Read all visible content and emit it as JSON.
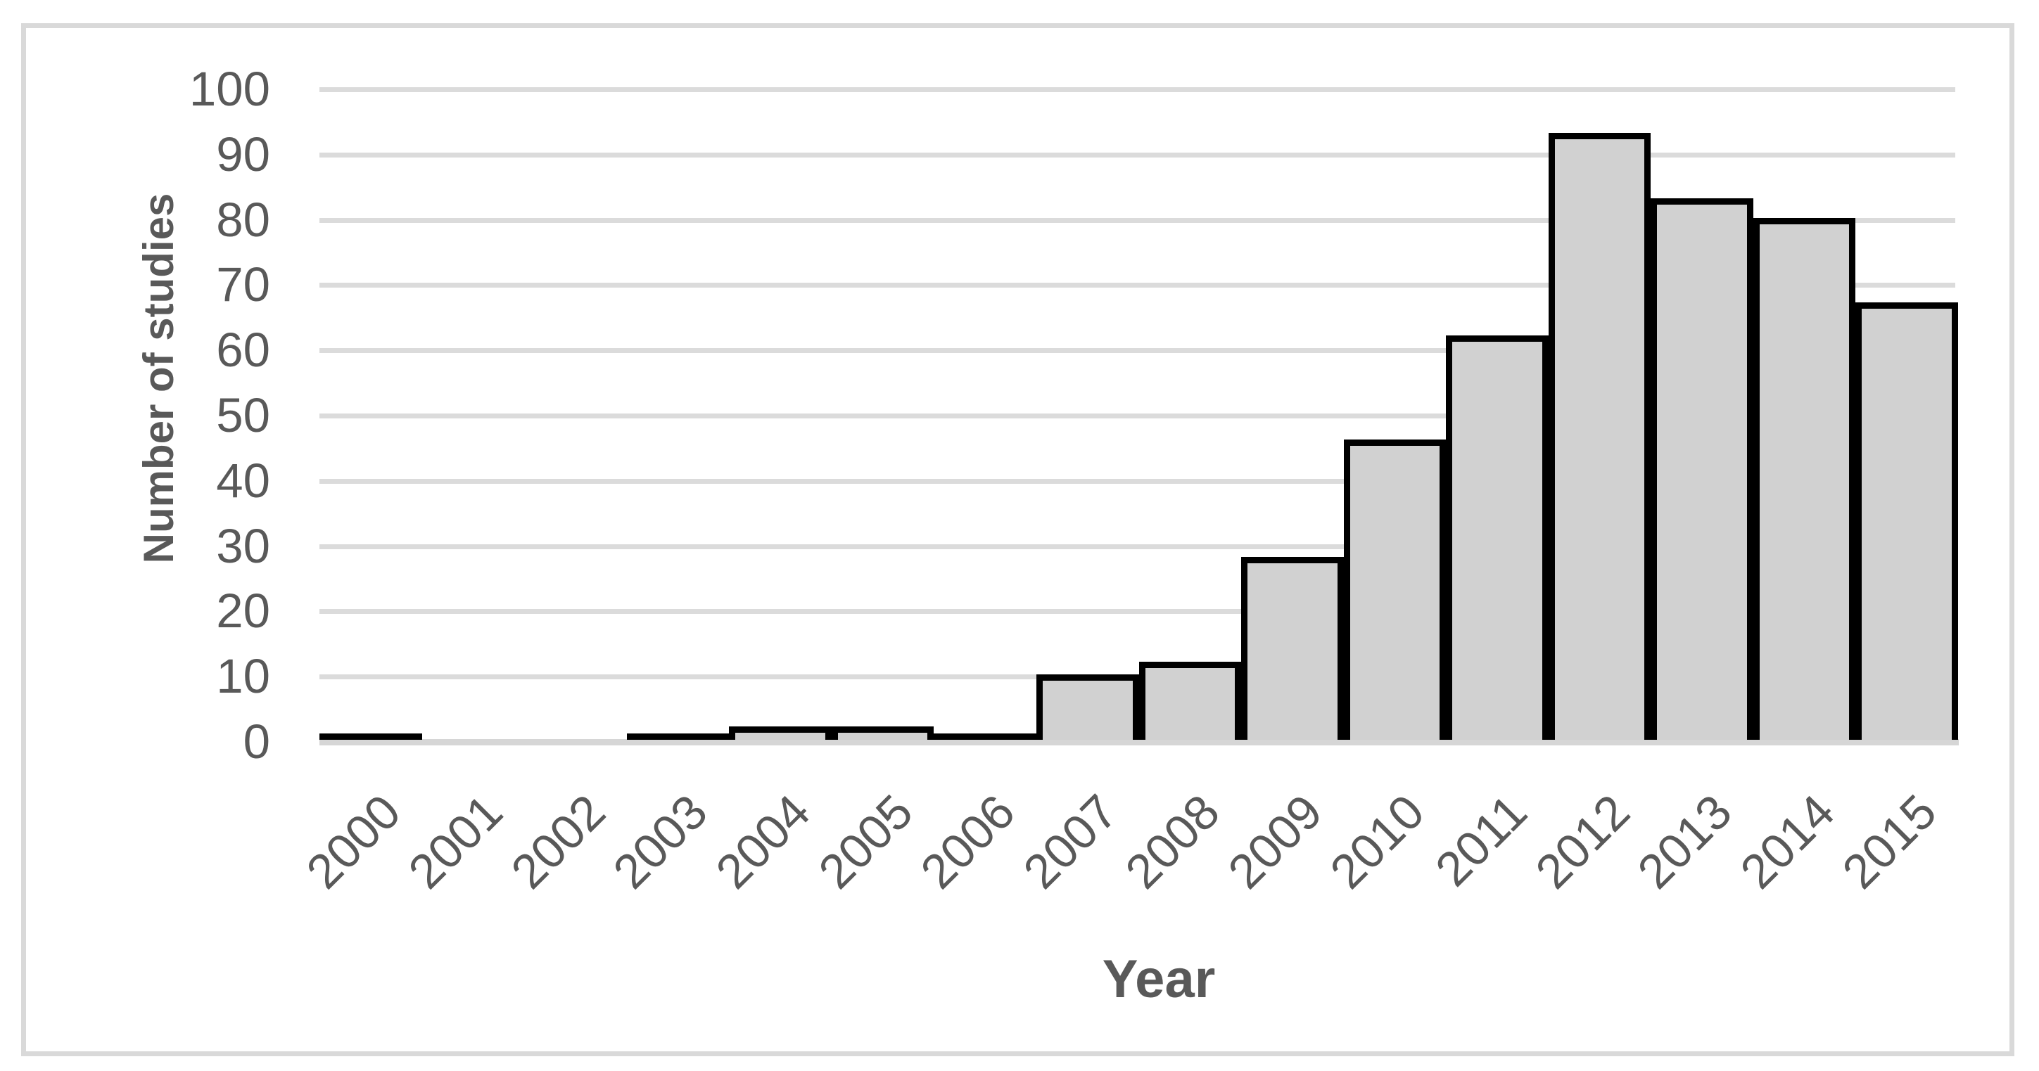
{
  "chart_data": {
    "type": "bar",
    "title": "",
    "xlabel": "Year",
    "ylabel": "Number of studies",
    "categories": [
      "2000",
      "2001",
      "2002",
      "2003",
      "2004",
      "2005",
      "2006",
      "2007",
      "2008",
      "2009",
      "2010",
      "2011",
      "2012",
      "2013",
      "2014",
      "2015"
    ],
    "values": [
      1,
      0,
      0,
      1,
      2,
      2,
      1,
      10,
      12,
      28,
      46,
      62,
      93,
      83,
      80,
      67
    ],
    "ylim": [
      0,
      100
    ],
    "yticks": [
      0,
      10,
      20,
      30,
      40,
      50,
      60,
      70,
      80,
      90,
      100
    ],
    "grid": "horizontal",
    "legend": "none",
    "bar_gap": 0
  },
  "style": {
    "background": "#ffffff",
    "frame_border_color": "#d9d9d9",
    "gridline_color": "#dbdbdb",
    "axis_line_color": "#d6d6d6",
    "bar_fill": "#d1d1d1",
    "bar_border": "#000000",
    "text_color": "#595959"
  }
}
